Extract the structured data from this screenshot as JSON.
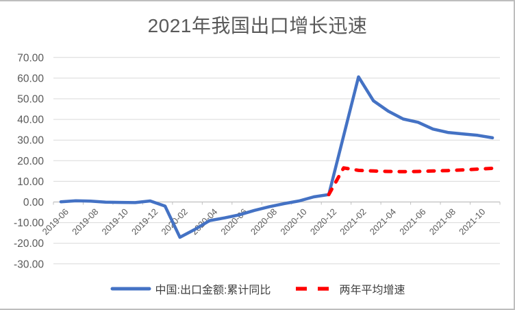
{
  "frame": {
    "background": "#FFFFFF",
    "border_color": "#BDBDBD"
  },
  "chart_data": {
    "type": "line",
    "title": "2021年我国出口增长迅速",
    "categories": [
      "2019-06",
      "2019-07",
      "2019-08",
      "2019-09",
      "2019-10",
      "2019-11",
      "2019-12",
      "2020-01",
      "2020-02",
      "2020-03",
      "2020-04",
      "2020-05",
      "2020-06",
      "2020-07",
      "2020-08",
      "2020-09",
      "2020-10",
      "2020-11",
      "2020-12",
      "2021-01",
      "2021-02",
      "2021-03",
      "2021-04",
      "2021-05",
      "2021-06",
      "2021-07",
      "2021-08",
      "2021-09",
      "2021-10",
      "2021-11"
    ],
    "x_tick_labels": [
      "2019-06",
      "2019-08",
      "2019-10",
      "2019-12",
      "2020-02",
      "2020-04",
      "2020-06",
      "2020-08",
      "2020-10",
      "2020-12",
      "2021-02",
      "2021-04",
      "2021-06",
      "2021-08",
      "2021-10"
    ],
    "x_tick_label_interval": 2,
    "y_tick_labels": [
      "70.00",
      "60.00",
      "50.00",
      "40.00",
      "30.00",
      "20.00",
      "10.00",
      "0.00",
      "-10.00",
      "-20.00",
      "-30.00"
    ],
    "ylim": [
      -30,
      70
    ],
    "y_tick_step": 10,
    "grid": true,
    "legend_position": "bottom",
    "series": [
      {
        "name": "中国:出口金额:累计同比",
        "color": "#4472C4",
        "style": "solid",
        "values": [
          0.1,
          0.6,
          0.4,
          -0.1,
          -0.2,
          -0.3,
          0.5,
          -2.0,
          -17.1,
          -13.3,
          -9.0,
          -7.7,
          -6.2,
          -4.1,
          -2.3,
          -0.8,
          0.5,
          2.5,
          3.6,
          null,
          60.6,
          49.0,
          44.0,
          40.2,
          38.6,
          35.3,
          33.7,
          33.0,
          32.3,
          31.1
        ]
      },
      {
        "name": "两年平均增速",
        "color": "#FF0000",
        "style": "dashed",
        "values": [
          null,
          null,
          null,
          null,
          null,
          null,
          null,
          null,
          null,
          null,
          null,
          null,
          null,
          null,
          null,
          null,
          null,
          null,
          3.6,
          16.5,
          15.3,
          15.0,
          14.8,
          14.7,
          14.8,
          15.0,
          15.2,
          15.5,
          15.9,
          16.3
        ]
      }
    ],
    "colors": {
      "title_text": "#595959",
      "tick_label_text": "#595959",
      "legend_text": "#404040",
      "gridline": "#D9D9D9",
      "axis_line": "#BFBFBF"
    }
  }
}
